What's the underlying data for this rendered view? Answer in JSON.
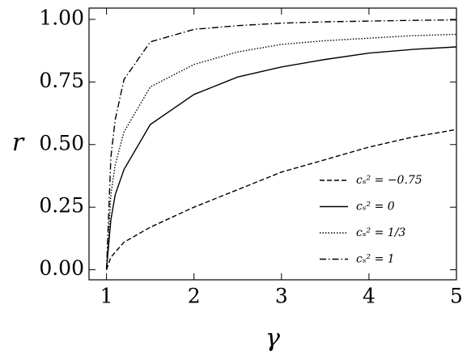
{
  "chart_data": {
    "type": "line",
    "x_label": "γ",
    "y_label": "r",
    "x": [
      1,
      1.05,
      1.1,
      1.2,
      1.5,
      2,
      2.5,
      3,
      3.5,
      4,
      4.5,
      5
    ],
    "series": [
      {
        "name": "cₛ² = −0.75",
        "color": "#000000",
        "dash": "6,3",
        "values": [
          0,
          0.05,
          0.07,
          0.11,
          0.17,
          0.25,
          0.32,
          0.39,
          0.44,
          0.49,
          0.53,
          0.56
        ]
      },
      {
        "name": "cₛ² = 0",
        "color": "#000000",
        "dash": "none",
        "values": [
          0,
          0.2,
          0.3,
          0.4,
          0.58,
          0.7,
          0.77,
          0.81,
          0.84,
          0.865,
          0.88,
          0.89
        ]
      },
      {
        "name": "cₛ² = 1/3",
        "color": "#000000",
        "dash": "1.5,2",
        "values": [
          0,
          0.3,
          0.42,
          0.55,
          0.73,
          0.82,
          0.87,
          0.9,
          0.915,
          0.925,
          0.935,
          0.94
        ]
      },
      {
        "name": "cₛ² = 1",
        "color": "#000000",
        "dash": "8,3,1.5,3",
        "values": [
          0,
          0.45,
          0.6,
          0.76,
          0.91,
          0.96,
          0.975,
          0.985,
          0.99,
          0.993,
          0.996,
          0.998
        ]
      }
    ],
    "xlim": [
      0.8,
      5
    ],
    "ylim": [
      -0.04,
      1.045
    ],
    "xticks": [
      1,
      2,
      3,
      4,
      5
    ],
    "yticks": [
      {
        "value": 0,
        "label": "0.00"
      },
      {
        "value": 0.25,
        "label": "0.25"
      },
      {
        "value": 0.5,
        "label": "0.50"
      },
      {
        "value": 0.75,
        "label": "0.75"
      },
      {
        "value": 1,
        "label": "1.00"
      }
    ],
    "legend": "lower right"
  }
}
